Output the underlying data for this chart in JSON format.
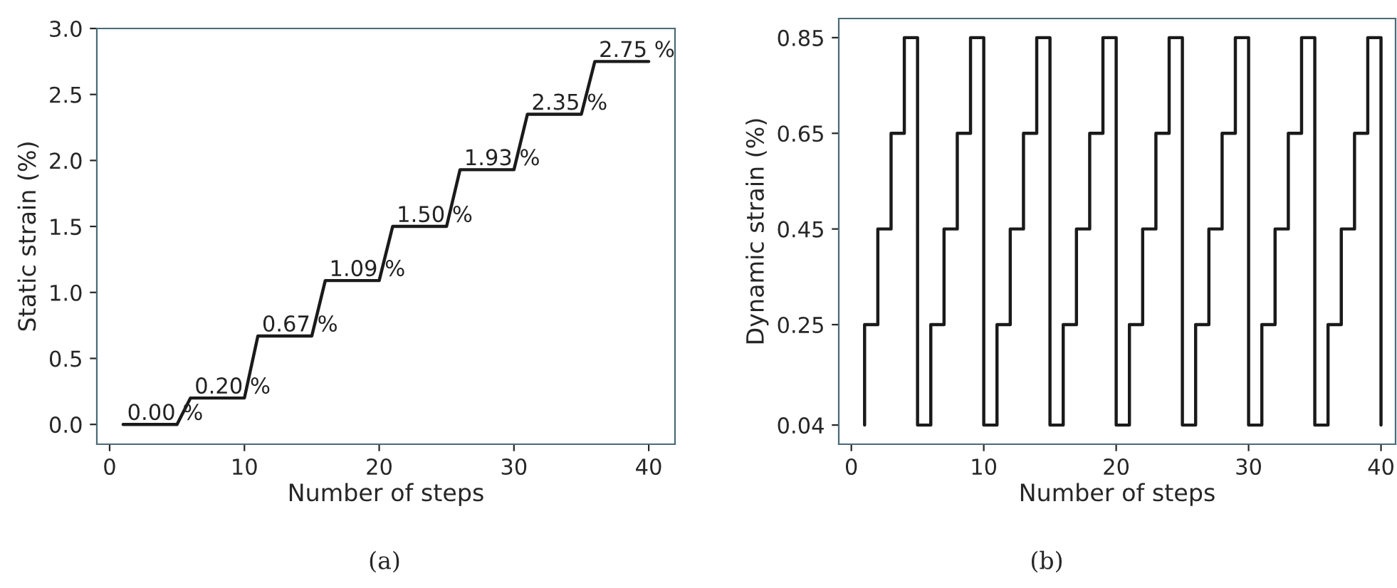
{
  "chart_data": [
    {
      "type": "line",
      "xlabel": "Number of steps",
      "ylabel": "Static strain (%)",
      "annotations": [
        "(a)"
      ],
      "x": [
        1,
        2,
        3,
        4,
        5,
        6,
        7,
        8,
        9,
        10,
        11,
        12,
        13,
        14,
        15,
        16,
        17,
        18,
        19,
        20,
        21,
        22,
        23,
        24,
        25,
        26,
        27,
        28,
        29,
        30,
        31,
        32,
        33,
        34,
        35,
        36,
        37,
        38,
        39,
        40
      ],
      "series": [
        {
          "color": "#1a1a1a",
          "values": [
            0.0,
            0.0,
            0.0,
            0.0,
            0.0,
            0.2,
            0.2,
            0.2,
            0.2,
            0.2,
            0.67,
            0.67,
            0.67,
            0.67,
            0.67,
            1.09,
            1.09,
            1.09,
            1.09,
            1.09,
            1.5,
            1.5,
            1.5,
            1.5,
            1.5,
            1.93,
            1.93,
            1.93,
            1.93,
            1.93,
            2.35,
            2.35,
            2.35,
            2.35,
            2.35,
            2.75,
            2.75,
            2.75,
            2.75,
            2.75
          ],
          "value_labels": [
            "0.00 %",
            null,
            null,
            null,
            null,
            "0.20 %",
            null,
            null,
            null,
            null,
            "0.67 %",
            null,
            null,
            null,
            null,
            "1.09 %",
            null,
            null,
            null,
            null,
            "1.50 %",
            null,
            null,
            null,
            null,
            "1.93 %",
            null,
            null,
            null,
            null,
            "2.35 %",
            null,
            null,
            null,
            null,
            "2.75 %",
            null,
            null,
            null,
            null
          ]
        }
      ],
      "xlim": [
        -0.95,
        41.95
      ],
      "xticks": [
        0,
        10,
        20,
        30,
        40
      ],
      "ylim": [
        -0.15,
        3.0
      ],
      "yticks": [
        {
          "value": 0,
          "label": "0.0"
        },
        0.5,
        {
          "value": 1,
          "label": "1.0"
        },
        1.5,
        {
          "value": 2,
          "label": "2.0"
        },
        2.5,
        {
          "value": 3,
          "label": "3.0"
        }
      ],
      "grid": false,
      "legend": false
    },
    {
      "type": "step",
      "xlabel": "Number of steps",
      "ylabel": "Dynamic strain (%)",
      "annotations": [
        "(b)"
      ],
      "x": [
        1,
        1,
        2,
        3,
        4,
        5,
        6,
        7,
        8,
        9,
        10,
        11,
        12,
        13,
        14,
        15,
        16,
        17,
        18,
        19,
        20,
        21,
        22,
        23,
        24,
        25,
        26,
        27,
        28,
        29,
        30,
        31,
        32,
        33,
        34,
        35,
        36,
        37,
        38,
        39,
        40
      ],
      "series": [
        {
          "color": "#1a1a1a",
          "values": [
            0.04,
            0.25,
            0.45,
            0.65,
            0.85,
            0.04,
            0.25,
            0.45,
            0.65,
            0.85,
            0.04,
            0.25,
            0.45,
            0.65,
            0.85,
            0.04,
            0.25,
            0.45,
            0.65,
            0.85,
            0.04,
            0.25,
            0.45,
            0.65,
            0.85,
            0.04,
            0.25,
            0.45,
            0.65,
            0.85,
            0.04,
            0.25,
            0.45,
            0.65,
            0.85,
            0.04,
            0.25,
            0.45,
            0.65,
            0.85,
            0.04
          ]
        }
      ],
      "xlim": [
        -0.95,
        41.1
      ],
      "xticks": [
        0,
        10,
        20,
        30,
        40
      ],
      "ylim": [
        0.0,
        0.89
      ],
      "yticks": [
        0.04,
        0.25,
        0.45,
        0.65,
        0.85
      ],
      "grid": false,
      "legend": false
    }
  ]
}
